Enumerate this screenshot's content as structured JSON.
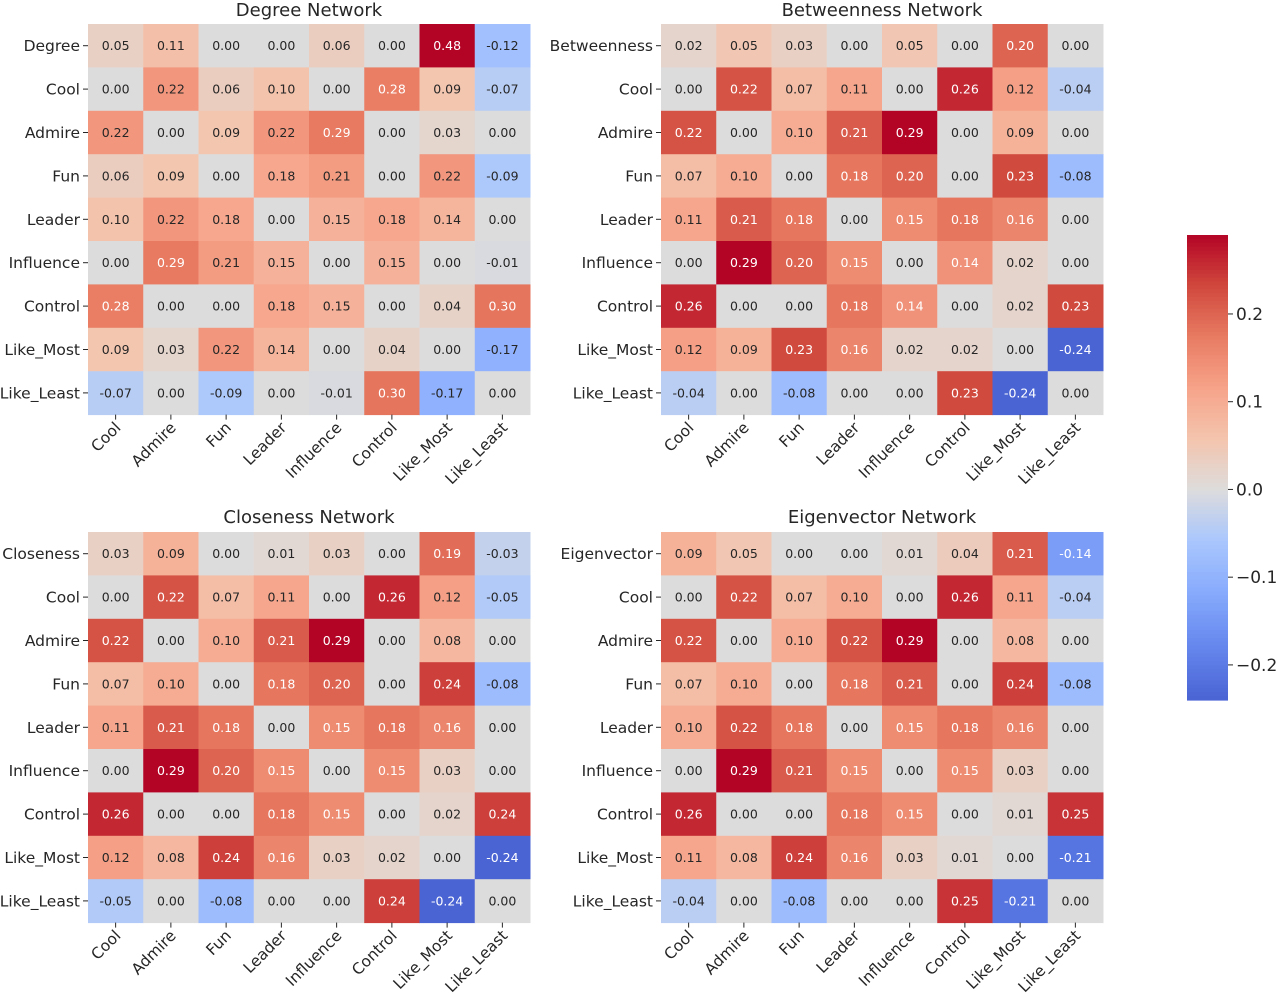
{
  "chart_data": [
    {
      "type": "heatmap",
      "title": "Degree Network",
      "row_labels": [
        "Degree",
        "Cool",
        "Admire",
        "Fun",
        "Leader",
        "Influence",
        "Control",
        "Like_Most",
        "Like_Least"
      ],
      "col_labels": [
        "Cool",
        "Admire",
        "Fun",
        "Leader",
        "Influence",
        "Control",
        "Like_Most",
        "Like_Least"
      ],
      "values": [
        [
          0.05,
          0.11,
          0.0,
          0.0,
          0.06,
          0.0,
          0.48,
          -0.12
        ],
        [
          0.0,
          0.22,
          0.06,
          0.1,
          0.0,
          0.28,
          0.09,
          -0.07
        ],
        [
          0.22,
          0.0,
          0.09,
          0.22,
          0.29,
          0.0,
          0.03,
          0.0
        ],
        [
          0.06,
          0.09,
          0.0,
          0.18,
          0.21,
          0.0,
          0.22,
          -0.09
        ],
        [
          0.1,
          0.22,
          0.18,
          0.0,
          0.15,
          0.18,
          0.14,
          0.0
        ],
        [
          0.0,
          0.29,
          0.21,
          0.15,
          0.0,
          0.15,
          0.0,
          -0.01
        ],
        [
          0.28,
          0.0,
          0.0,
          0.18,
          0.15,
          0.0,
          0.04,
          0.3
        ],
        [
          0.09,
          0.03,
          0.22,
          0.14,
          0.0,
          0.04,
          0.0,
          -0.17
        ],
        [
          -0.07,
          0.0,
          -0.09,
          0.0,
          -0.01,
          0.3,
          -0.17,
          0.0
        ]
      ]
    },
    {
      "type": "heatmap",
      "title": "Betweenness Network",
      "row_labels": [
        "Betweenness",
        "Cool",
        "Admire",
        "Fun",
        "Leader",
        "Influence",
        "Control",
        "Like_Most",
        "Like_Least"
      ],
      "col_labels": [
        "Cool",
        "Admire",
        "Fun",
        "Leader",
        "Influence",
        "Control",
        "Like_Most",
        "Like_Least"
      ],
      "values": [
        [
          0.02,
          0.05,
          0.03,
          0.0,
          0.05,
          0.0,
          0.2,
          0.0
        ],
        [
          0.0,
          0.22,
          0.07,
          0.11,
          0.0,
          0.26,
          0.12,
          -0.04
        ],
        [
          0.22,
          0.0,
          0.1,
          0.21,
          0.29,
          0.0,
          0.09,
          0.0
        ],
        [
          0.07,
          0.1,
          0.0,
          0.18,
          0.2,
          0.0,
          0.23,
          -0.08
        ],
        [
          0.11,
          0.21,
          0.18,
          0.0,
          0.15,
          0.18,
          0.16,
          0.0
        ],
        [
          0.0,
          0.29,
          0.2,
          0.15,
          0.0,
          0.14,
          0.02,
          0.0
        ],
        [
          0.26,
          0.0,
          0.0,
          0.18,
          0.14,
          0.0,
          0.02,
          0.23
        ],
        [
          0.12,
          0.09,
          0.23,
          0.16,
          0.02,
          0.02,
          0.0,
          -0.24
        ],
        [
          -0.04,
          0.0,
          -0.08,
          0.0,
          0.0,
          0.23,
          -0.24,
          0.0
        ]
      ]
    },
    {
      "type": "heatmap",
      "title": "Closeness Network",
      "row_labels": [
        "Closeness",
        "Cool",
        "Admire",
        "Fun",
        "Leader",
        "Influence",
        "Control",
        "Like_Most",
        "Like_Least"
      ],
      "col_labels": [
        "Cool",
        "Admire",
        "Fun",
        "Leader",
        "Influence",
        "Control",
        "Like_Most",
        "Like_Least"
      ],
      "values": [
        [
          0.03,
          0.09,
          0.0,
          0.01,
          0.03,
          0.0,
          0.19,
          -0.03
        ],
        [
          0.0,
          0.22,
          0.07,
          0.11,
          0.0,
          0.26,
          0.12,
          -0.05
        ],
        [
          0.22,
          0.0,
          0.1,
          0.21,
          0.29,
          0.0,
          0.08,
          0.0
        ],
        [
          0.07,
          0.1,
          0.0,
          0.18,
          0.2,
          0.0,
          0.24,
          -0.08
        ],
        [
          0.11,
          0.21,
          0.18,
          0.0,
          0.15,
          0.18,
          0.16,
          0.0
        ],
        [
          0.0,
          0.29,
          0.2,
          0.15,
          0.0,
          0.15,
          0.03,
          0.0
        ],
        [
          0.26,
          0.0,
          0.0,
          0.18,
          0.15,
          0.0,
          0.02,
          0.24
        ],
        [
          0.12,
          0.08,
          0.24,
          0.16,
          0.03,
          0.02,
          0.0,
          -0.24
        ],
        [
          -0.05,
          0.0,
          -0.08,
          0.0,
          0.0,
          0.24,
          -0.24,
          0.0
        ]
      ]
    },
    {
      "type": "heatmap",
      "title": "Eigenvector Network",
      "row_labels": [
        "Eigenvector",
        "Cool",
        "Admire",
        "Fun",
        "Leader",
        "Influence",
        "Control",
        "Like_Most",
        "Like_Least"
      ],
      "col_labels": [
        "Cool",
        "Admire",
        "Fun",
        "Leader",
        "Influence",
        "Control",
        "Like_Most",
        "Like_Least"
      ],
      "values": [
        [
          0.09,
          0.05,
          0.0,
          0.0,
          0.01,
          0.04,
          0.21,
          -0.14
        ],
        [
          0.0,
          0.22,
          0.07,
          0.1,
          0.0,
          0.26,
          0.11,
          -0.04
        ],
        [
          0.22,
          0.0,
          0.1,
          0.22,
          0.29,
          0.0,
          0.08,
          0.0
        ],
        [
          0.07,
          0.1,
          0.0,
          0.18,
          0.21,
          0.0,
          0.24,
          -0.08
        ],
        [
          0.1,
          0.22,
          0.18,
          0.0,
          0.15,
          0.18,
          0.16,
          0.0
        ],
        [
          0.0,
          0.29,
          0.21,
          0.15,
          0.0,
          0.15,
          0.03,
          0.0
        ],
        [
          0.26,
          0.0,
          0.0,
          0.18,
          0.15,
          0.0,
          0.01,
          0.25
        ],
        [
          0.11,
          0.08,
          0.24,
          0.16,
          0.03,
          0.01,
          0.0,
          -0.21
        ],
        [
          -0.04,
          0.0,
          -0.08,
          0.0,
          0.0,
          0.25,
          -0.21,
          0.0
        ]
      ]
    }
  ],
  "colormap": "coolwarm",
  "center": 0,
  "colorbar": {
    "range": [
      -0.24,
      0.29
    ],
    "ticks": [
      0.2,
      0.1,
      0.0,
      -0.1,
      -0.2
    ],
    "tick_labels": [
      "0.2",
      "0.1",
      "0.0",
      "−0.1",
      "−0.2"
    ]
  }
}
